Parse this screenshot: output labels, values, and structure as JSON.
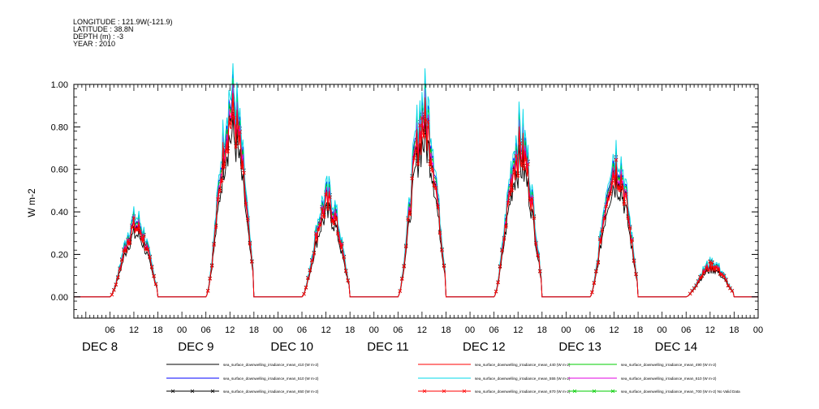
{
  "header": {
    "longitude": "LONGITUDE : 121.9W(-121.9)",
    "latitude": "LATITUDE : 38.8N",
    "depth": "DEPTH (m) : -3",
    "year": "YEAR : 2010"
  },
  "chart_data": {
    "type": "line",
    "ylabel": "W m-2",
    "ylim": [
      -0.1,
      1.0
    ],
    "yticks": [
      "0.00",
      "0.20",
      "0.40",
      "0.60",
      "0.80",
      "1.00"
    ],
    "xlim_hours": [
      0,
      171
    ],
    "hour_tick_labels": [
      "06",
      "12",
      "18",
      "00"
    ],
    "day_labels": [
      "DEC 8",
      "DEC 9",
      "DEC 10",
      "DEC 11",
      "DEC 12",
      "DEC 13",
      "DEC 14"
    ],
    "grid": false,
    "legend_position": "bottom",
    "days_peak_estimates": {
      "DEC 8": 0.34,
      "DEC 9": 0.88,
      "DEC 10": 0.45,
      "DEC 11": 0.85,
      "DEC 12": 0.72,
      "DEC 13": 0.63,
      "DEC 14": 0.15
    },
    "series": [
      {
        "name": "sea_surface_downwelling_irradiance_mean_410 (W m-2)",
        "color": "#000000",
        "marker": "none",
        "scale": 0.86
      },
      {
        "name": "sea_surface_downwelling_irradiance_mean_440 (W m-2)",
        "color": "#ff0000",
        "marker": "none",
        "scale": 0.94
      },
      {
        "name": "sea_surface_downwelling_irradiance_mean_490 (W m-2)",
        "color": "#00cc00",
        "marker": "none",
        "scale": 1.03
      },
      {
        "name": "sea_surface_downwelling_irradiance_mean_510 (W m-2)",
        "color": "#0000ff",
        "marker": "none",
        "scale": 1.05
      },
      {
        "name": "sea_surface_downwelling_irradiance_mean_555 (W m-2)",
        "color": "#00d8e8",
        "marker": "none",
        "scale": 1.1
      },
      {
        "name": "sea_surface_downwelling_irradiance_mean_610 (W m-2)",
        "color": "#e000e0",
        "marker": "none",
        "scale": 1.0
      },
      {
        "name": "sea_surface_downwelling_irradiance_mean_650 (W m-2)",
        "color": "#000000",
        "marker": "x",
        "scale": 0.98
      },
      {
        "name": "sea_surface_downwelling_irradiance_mean_670 (W m-2)",
        "color": "#ff0000",
        "marker": "x",
        "scale": 0.96
      },
      {
        "name": "sea_surface_downwelling_irradiance_mean_700 (W m-2) No Valid Data",
        "color": "#00cc00",
        "marker": "x",
        "scale": 0
      }
    ]
  }
}
